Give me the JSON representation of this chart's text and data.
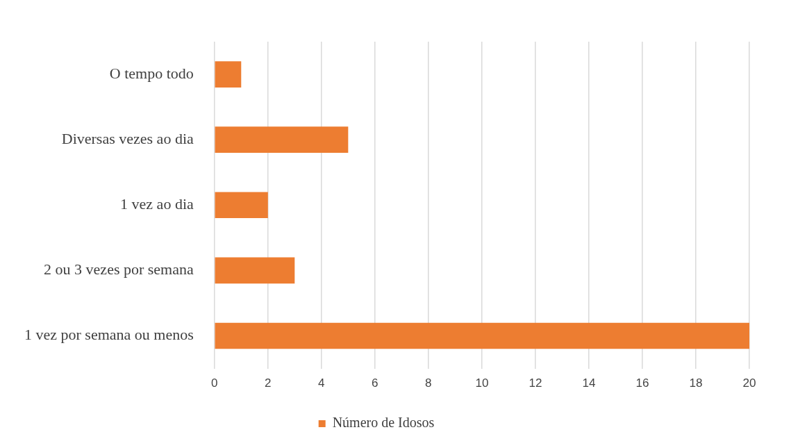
{
  "chart_data": {
    "type": "bar",
    "orientation": "horizontal",
    "categories": [
      "O tempo todo",
      "Diversas vezes ao dia",
      "1 vez ao dia",
      "2 ou 3 vezes por semana",
      "1 vez por semana ou menos"
    ],
    "series": [
      {
        "name": "Número de Idosos",
        "color": "#ed7d31",
        "values": [
          1,
          5,
          2,
          3,
          20
        ]
      }
    ],
    "xlim": [
      0,
      20
    ],
    "xticks": [
      0,
      2,
      4,
      6,
      8,
      10,
      12,
      14,
      16,
      18,
      20
    ],
    "grid": "x",
    "legend": "bottom"
  }
}
